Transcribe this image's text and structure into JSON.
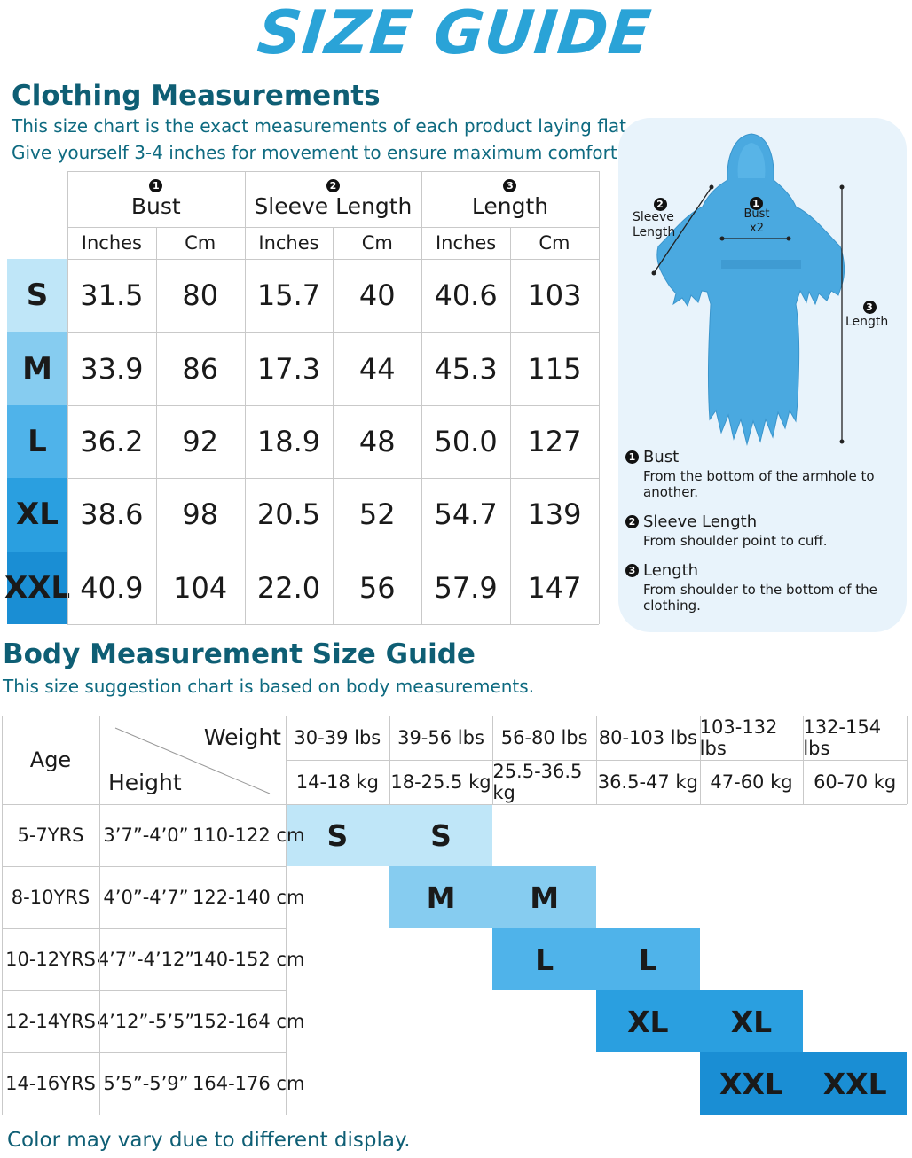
{
  "title": "SIZE GUIDE",
  "clothing": {
    "heading": "Clothing Measurements",
    "subtitle_line1": "This size chart is the exact measurements of each product laying flat.",
    "subtitle_line2": "Give yourself 3-4 inches for movement to ensure maximum comfort.",
    "columns": [
      {
        "num": "1",
        "label": "Bust"
      },
      {
        "num": "2",
        "label": "Sleeve Length"
      },
      {
        "num": "3",
        "label": "Length"
      }
    ],
    "unit_inches": "Inches",
    "unit_cm": "Cm",
    "rows": [
      {
        "size": "S",
        "color": "#bfe6f8",
        "values": [
          "31.5",
          "80",
          "15.7",
          "40",
          "40.6",
          "103"
        ]
      },
      {
        "size": "M",
        "color": "#86ccf0",
        "values": [
          "33.9",
          "86",
          "17.3",
          "44",
          "45.3",
          "115"
        ]
      },
      {
        "size": "L",
        "color": "#4fb3ea",
        "values": [
          "36.2",
          "92",
          "18.9",
          "48",
          "50.0",
          "127"
        ]
      },
      {
        "size": "XL",
        "color": "#2a9fe0",
        "values": [
          "38.6",
          "98",
          "20.5",
          "52",
          "54.7",
          "139"
        ]
      },
      {
        "size": "XXL",
        "color": "#1a8ed4",
        "values": [
          "40.9",
          "104",
          "22.0",
          "56",
          "57.9",
          "147"
        ]
      }
    ]
  },
  "diagram": {
    "label_sleeve_num": "2",
    "label_sleeve_l1": "Sleeve",
    "label_sleeve_l2": "Length",
    "label_bust_num": "1",
    "label_bust_l1": "Bust",
    "label_bust_l2": "x2",
    "label_length_num": "3",
    "label_length": "Length",
    "robe_color": "#4aa9e0",
    "legend": [
      {
        "num": "1",
        "title": "Bust",
        "desc": "From the bottom of the armhole to another."
      },
      {
        "num": "2",
        "title": "Sleeve Length",
        "desc": "From shoulder point to cuff."
      },
      {
        "num": "3",
        "title": "Length",
        "desc": "From shoulder to the bottom of the clothing."
      }
    ]
  },
  "body": {
    "heading": "Body Measurement Size Guide",
    "subtitle": "This size suggestion chart is based on body measurements.",
    "age_label": "Age",
    "weight_label": "Weight",
    "height_label": "Height",
    "weights_lbs": [
      "30-39 lbs",
      "39-56 lbs",
      "56-80 lbs",
      "80-103 lbs",
      "103-132 lbs",
      "132-154 lbs"
    ],
    "weights_kg": [
      "14-18 kg",
      "18-25.5 kg",
      "25.5-36.5 kg",
      "36.5-47 kg",
      "47-60 kg",
      "60-70 kg"
    ],
    "rows": [
      {
        "age": "5-7YRS",
        "height_ft": "3’7”-4’0”",
        "height_cm": "110-122 cm",
        "size": "S",
        "start": 0,
        "color": "#bfe6f8"
      },
      {
        "age": "8-10YRS",
        "height_ft": "4’0”-4’7”",
        "height_cm": "122-140 cm",
        "size": "M",
        "start": 1,
        "color": "#86ccf0"
      },
      {
        "age": "10-12YRS",
        "height_ft": "4’7”-4’12”",
        "height_cm": "140-152 cm",
        "size": "L",
        "start": 2,
        "color": "#4fb3ea"
      },
      {
        "age": "12-14YRS",
        "height_ft": "4’12”-5’5”",
        "height_cm": "152-164 cm",
        "size": "XL",
        "start": 3,
        "color": "#2a9fe0"
      },
      {
        "age": "14-16YRS",
        "height_ft": "5’5”-5’9”",
        "height_cm": "164-176 cm",
        "size": "XXL",
        "start": 4,
        "color": "#1a8ed4"
      }
    ]
  },
  "footnote": "Color may vary due to different display."
}
